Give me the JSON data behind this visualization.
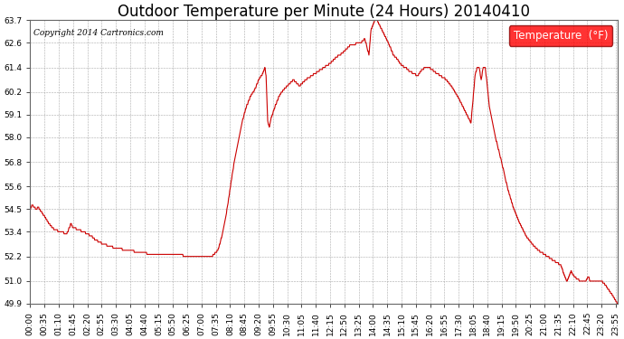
{
  "title": "Outdoor Temperature per Minute (24 Hours) 20140410",
  "copyright": "Copyright 2014 Cartronics.com",
  "legend_label": "Temperature  (°F)",
  "line_color": "#cc0000",
  "background_color": "#ffffff",
  "grid_color": "#aaaaaa",
  "ylim": [
    49.9,
    63.7
  ],
  "yticks": [
    49.9,
    51.0,
    52.2,
    53.4,
    54.5,
    55.6,
    56.8,
    58.0,
    59.1,
    60.2,
    61.4,
    62.6,
    63.7
  ],
  "xtick_every_minutes": 35,
  "title_fontsize": 12,
  "axis_fontsize": 6.5,
  "legend_fontsize": 8.5,
  "keypoints": [
    [
      0,
      54.5
    ],
    [
      5,
      54.7
    ],
    [
      15,
      54.5
    ],
    [
      20,
      54.6
    ],
    [
      30,
      54.3
    ],
    [
      40,
      54.0
    ],
    [
      50,
      53.7
    ],
    [
      60,
      53.5
    ],
    [
      75,
      53.4
    ],
    [
      90,
      53.3
    ],
    [
      100,
      53.8
    ],
    [
      105,
      53.6
    ],
    [
      120,
      53.5
    ],
    [
      150,
      53.2
    ],
    [
      160,
      53.0
    ],
    [
      180,
      52.8
    ],
    [
      210,
      52.6
    ],
    [
      240,
      52.5
    ],
    [
      270,
      52.4
    ],
    [
      300,
      52.3
    ],
    [
      330,
      52.3
    ],
    [
      360,
      52.3
    ],
    [
      390,
      52.2
    ],
    [
      420,
      52.2
    ],
    [
      445,
      52.2
    ],
    [
      460,
      52.5
    ],
    [
      470,
      53.2
    ],
    [
      480,
      54.2
    ],
    [
      490,
      55.5
    ],
    [
      500,
      56.8
    ],
    [
      510,
      57.8
    ],
    [
      520,
      58.8
    ],
    [
      530,
      59.5
    ],
    [
      540,
      60.0
    ],
    [
      550,
      60.3
    ],
    [
      560,
      60.8
    ],
    [
      570,
      61.1
    ],
    [
      575,
      61.4
    ],
    [
      578,
      61.0
    ],
    [
      582,
      58.8
    ],
    [
      586,
      58.5
    ],
    [
      590,
      58.9
    ],
    [
      595,
      59.2
    ],
    [
      600,
      59.5
    ],
    [
      610,
      60.0
    ],
    [
      620,
      60.3
    ],
    [
      630,
      60.5
    ],
    [
      645,
      60.8
    ],
    [
      660,
      60.5
    ],
    [
      675,
      60.8
    ],
    [
      690,
      61.0
    ],
    [
      705,
      61.2
    ],
    [
      720,
      61.4
    ],
    [
      735,
      61.6
    ],
    [
      750,
      61.9
    ],
    [
      765,
      62.1
    ],
    [
      775,
      62.3
    ],
    [
      785,
      62.5
    ],
    [
      795,
      62.5
    ],
    [
      800,
      62.6
    ],
    [
      810,
      62.6
    ],
    [
      820,
      62.8
    ],
    [
      825,
      62.4
    ],
    [
      830,
      62.0
    ],
    [
      835,
      63.2
    ],
    [
      840,
      63.5
    ],
    [
      845,
      63.7
    ],
    [
      850,
      63.7
    ],
    [
      855,
      63.5
    ],
    [
      860,
      63.3
    ],
    [
      870,
      62.9
    ],
    [
      880,
      62.5
    ],
    [
      890,
      62.0
    ],
    [
      900,
      61.8
    ],
    [
      910,
      61.5
    ],
    [
      920,
      61.4
    ],
    [
      930,
      61.2
    ],
    [
      940,
      61.1
    ],
    [
      950,
      61.0
    ],
    [
      960,
      61.3
    ],
    [
      970,
      61.4
    ],
    [
      975,
      61.4
    ],
    [
      985,
      61.3
    ],
    [
      990,
      61.2
    ],
    [
      1005,
      61.0
    ],
    [
      1020,
      60.8
    ],
    [
      1035,
      60.4
    ],
    [
      1050,
      59.9
    ],
    [
      1065,
      59.3
    ],
    [
      1080,
      58.7
    ],
    [
      1090,
      61.0
    ],
    [
      1095,
      61.4
    ],
    [
      1100,
      61.4
    ],
    [
      1105,
      60.8
    ],
    [
      1110,
      61.4
    ],
    [
      1115,
      61.4
    ],
    [
      1120,
      60.5
    ],
    [
      1125,
      59.5
    ],
    [
      1140,
      58.0
    ],
    [
      1155,
      56.8
    ],
    [
      1170,
      55.5
    ],
    [
      1185,
      54.5
    ],
    [
      1200,
      53.8
    ],
    [
      1215,
      53.2
    ],
    [
      1230,
      52.8
    ],
    [
      1245,
      52.5
    ],
    [
      1260,
      52.3
    ],
    [
      1275,
      52.1
    ],
    [
      1290,
      51.9
    ],
    [
      1300,
      51.8
    ],
    [
      1310,
      51.2
    ],
    [
      1315,
      51.0
    ],
    [
      1320,
      51.2
    ],
    [
      1325,
      51.5
    ],
    [
      1330,
      51.3
    ],
    [
      1340,
      51.1
    ],
    [
      1350,
      51.0
    ],
    [
      1360,
      51.0
    ],
    [
      1368,
      51.2
    ],
    [
      1372,
      51.0
    ],
    [
      1380,
      51.0
    ],
    [
      1395,
      51.0
    ],
    [
      1400,
      51.0
    ],
    [
      1410,
      50.8
    ],
    [
      1420,
      50.5
    ],
    [
      1430,
      50.2
    ],
    [
      1439,
      49.9
    ]
  ]
}
